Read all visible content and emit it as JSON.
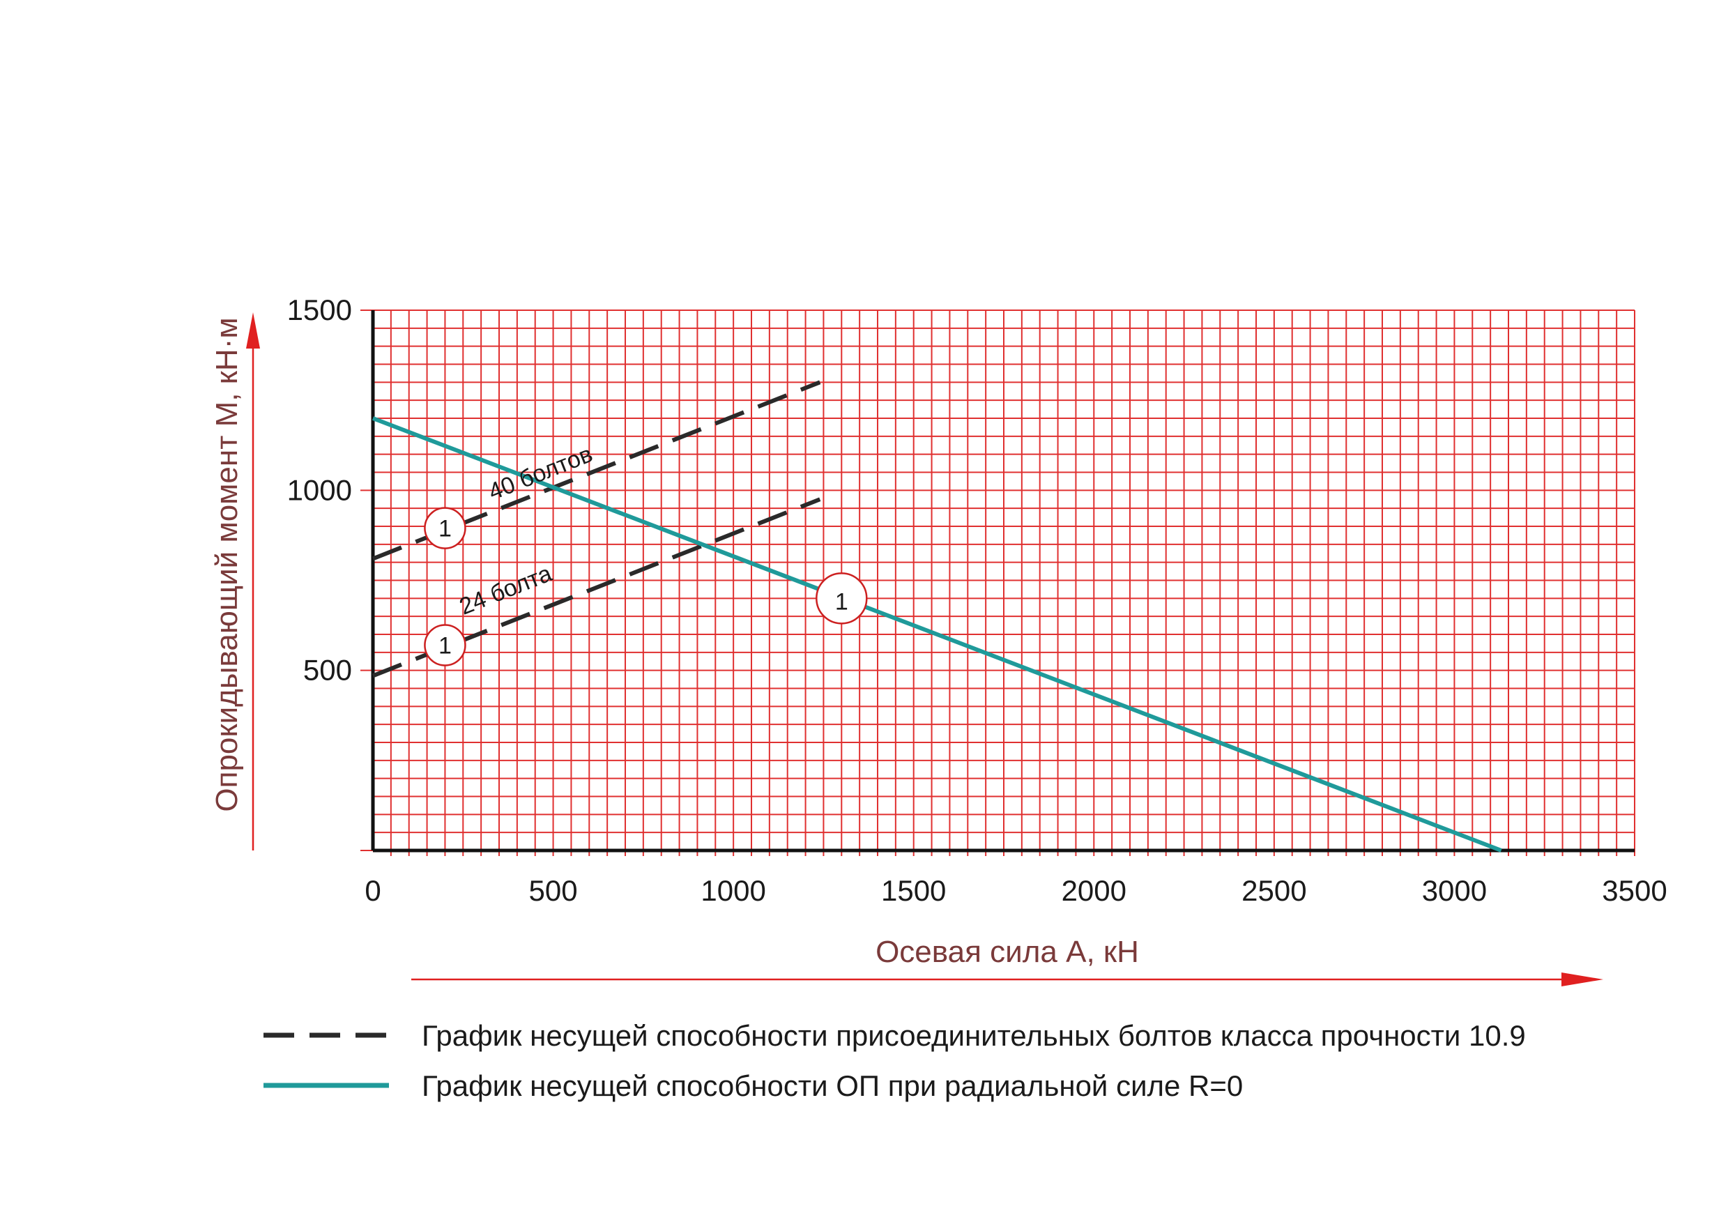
{
  "chart_data": {
    "type": "line",
    "xlabel": "Осевая сила А, кН",
    "ylabel": "Опрокидывающий момент М, кН·м",
    "xlim": [
      0,
      3500
    ],
    "ylim": [
      0,
      1500
    ],
    "x_ticks": [
      "0",
      "500",
      "1000",
      "1500",
      "2000",
      "2500",
      "3000",
      "3500"
    ],
    "y_ticks": [
      "500",
      "1000",
      "1500"
    ],
    "grid": true,
    "colors": {
      "grid": "#e03030",
      "axis": "#111111",
      "axis_title": "#7a3a3a",
      "arrow": "#e02020",
      "dashed": "#2a2a2a",
      "solid": "#1f9a9a",
      "marker_ring": "#cc2020"
    },
    "series": [
      {
        "name": "40 болтов",
        "style": "dashed",
        "x": [
          0,
          1240
        ],
        "y": [
          810,
          1300
        ],
        "marker": "1",
        "marker_at": [
          200,
          895
        ]
      },
      {
        "name": "24 болта",
        "style": "dashed",
        "x": [
          0,
          1240
        ],
        "y": [
          485,
          975
        ],
        "marker": "1",
        "marker_at": [
          200,
          570
        ]
      },
      {
        "style": "solid",
        "x": [
          0,
          3130
        ],
        "y": [
          1200,
          0
        ],
        "marker": "1",
        "marker_at": [
          1300,
          700
        ]
      }
    ],
    "legend": [
      {
        "style": "dashed",
        "label": "График несущей способности присоединительных болтов класса прочности 10.9"
      },
      {
        "style": "solid",
        "label": "График несущей способности ОП при радиальной силе R=0"
      }
    ]
  }
}
